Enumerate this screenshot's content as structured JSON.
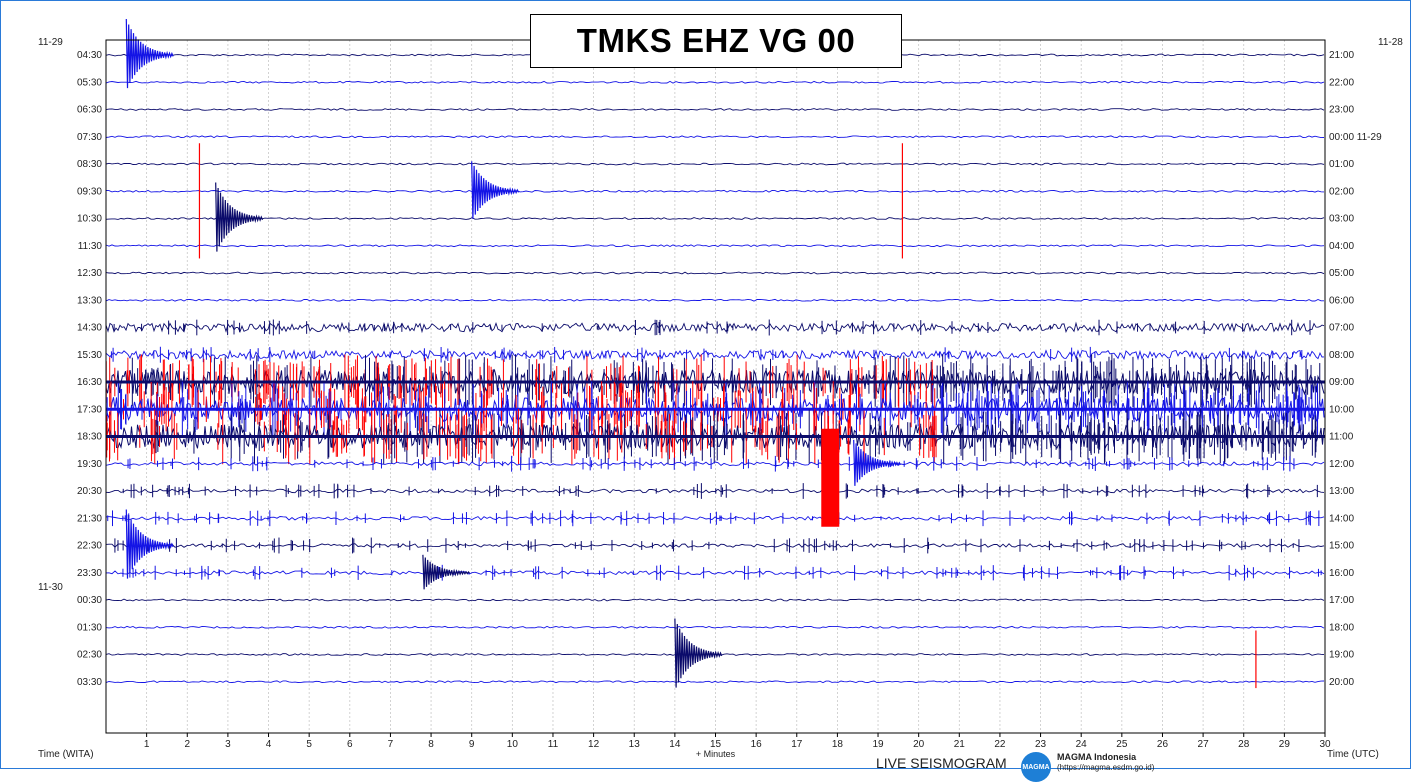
{
  "chart_data": {
    "type": "heliplot",
    "title": "TMKS EHZ VG 00",
    "xlabel": "+ Minutes",
    "xlim": [
      0,
      30
    ],
    "x_ticks": [
      1,
      2,
      3,
      4,
      5,
      6,
      7,
      8,
      9,
      10,
      11,
      12,
      13,
      14,
      15,
      16,
      17,
      18,
      19,
      20,
      21,
      22,
      23,
      24,
      25,
      26,
      27,
      28,
      29,
      30
    ],
    "left_axis_label": "Time (WITA)",
    "right_axis_label": "Time (UTC)",
    "left_date_labels": [
      {
        "row": 0,
        "text": "11-29"
      },
      {
        "row": 20,
        "text": "11-30"
      }
    ],
    "right_date_labels": [
      {
        "row": 0,
        "text": "11-28"
      }
    ],
    "rows": [
      {
        "wita": "04:30",
        "utc": "21:00",
        "level": 1,
        "color": "navy"
      },
      {
        "wita": "05:30",
        "utc": "22:00",
        "level": 1,
        "color": "blue"
      },
      {
        "wita": "06:30",
        "utc": "23:00",
        "level": 1,
        "color": "navy"
      },
      {
        "wita": "07:30",
        "utc": "00:00 11-29",
        "level": 1,
        "color": "blue"
      },
      {
        "wita": "08:30",
        "utc": "01:00",
        "level": 1,
        "color": "navy"
      },
      {
        "wita": "09:30",
        "utc": "02:00",
        "level": 1,
        "color": "blue"
      },
      {
        "wita": "10:30",
        "utc": "03:00",
        "level": 1,
        "color": "navy"
      },
      {
        "wita": "11:30",
        "utc": "04:00",
        "level": 1,
        "color": "blue"
      },
      {
        "wita": "12:30",
        "utc": "05:00",
        "level": 1,
        "color": "navy"
      },
      {
        "wita": "13:30",
        "utc": "06:00",
        "level": 1,
        "color": "blue"
      },
      {
        "wita": "14:30",
        "utc": "07:00",
        "level": 3,
        "color": "navy"
      },
      {
        "wita": "15:30",
        "utc": "08:00",
        "level": 3,
        "color": "blue"
      },
      {
        "wita": "16:30",
        "utc": "09:00",
        "level": 5,
        "color": "navy"
      },
      {
        "wita": "17:30",
        "utc": "10:00",
        "level": 5,
        "color": "blue"
      },
      {
        "wita": "18:30",
        "utc": "11:00",
        "level": 5,
        "color": "navy"
      },
      {
        "wita": "19:30",
        "utc": "12:00",
        "level": 2,
        "color": "blue"
      },
      {
        "wita": "20:30",
        "utc": "13:00",
        "level": 2,
        "color": "navy"
      },
      {
        "wita": "21:30",
        "utc": "14:00",
        "level": 2,
        "color": "blue"
      },
      {
        "wita": "22:30",
        "utc": "15:00",
        "level": 2,
        "color": "navy"
      },
      {
        "wita": "23:30",
        "utc": "16:00",
        "level": 2,
        "color": "blue"
      },
      {
        "wita": "00:30",
        "utc": "17:00",
        "level": 1,
        "color": "navy"
      },
      {
        "wita": "01:30",
        "utc": "18:00",
        "level": 1,
        "color": "blue"
      },
      {
        "wita": "02:30",
        "utc": "19:00",
        "level": 1,
        "color": "navy"
      },
      {
        "wita": "03:30",
        "utc": "20:00",
        "level": 1,
        "color": "blue"
      }
    ],
    "events": [
      {
        "row": 0,
        "minute": 0.5,
        "amp": 3,
        "color": "blue"
      },
      {
        "row": 5,
        "minute": 9.0,
        "amp": 2.5,
        "color": "blue"
      },
      {
        "row": 6,
        "minute": 2.7,
        "amp": 3,
        "color": "navy"
      },
      {
        "row": 5,
        "minute": 2.3,
        "amp": 4,
        "color": "red"
      },
      {
        "row": 5,
        "minute": 19.6,
        "amp": 4,
        "color": "red"
      },
      {
        "row": 15,
        "minute": 17.8,
        "amp": 4,
        "color": "red"
      },
      {
        "row": 15,
        "minute": 18.4,
        "amp": 2,
        "color": "blue"
      },
      {
        "row": 18,
        "minute": 0.5,
        "amp": 3,
        "color": "blue"
      },
      {
        "row": 19,
        "minute": 7.8,
        "amp": 1.5,
        "color": "navy"
      },
      {
        "row": 22,
        "minute": 14.0,
        "amp": 3,
        "color": "navy"
      },
      {
        "row": 22,
        "minute": 28.3,
        "amp": 2,
        "color": "red"
      }
    ],
    "colors": {
      "navy": "#0b0b6b",
      "blue": "#1414e6",
      "red": "#ff0000",
      "grid": "#c8c8c8"
    }
  },
  "footer": {
    "live_label": "LIVE SEISMOGRAM",
    "org_name": "MAGMA Indonesia",
    "org_url": "(https://magma.esdm.go.id)",
    "logo_text": "MAGMA"
  }
}
